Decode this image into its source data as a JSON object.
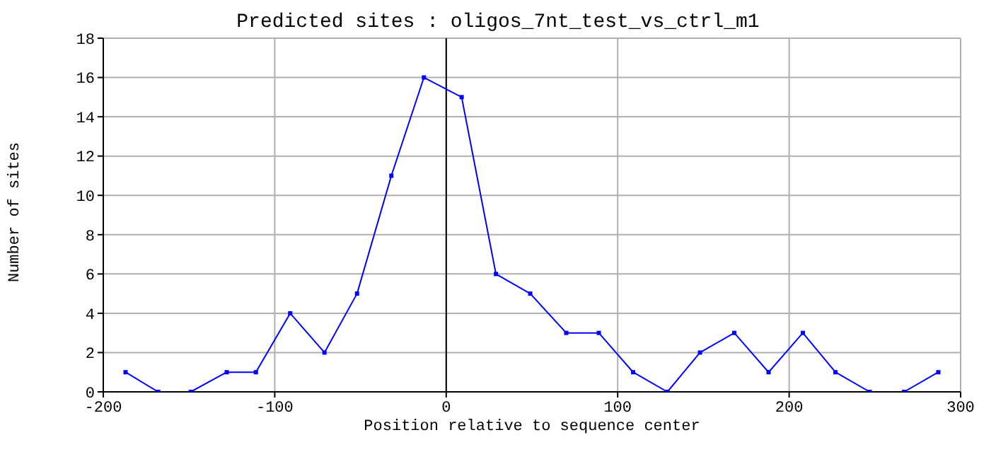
{
  "chart_data": {
    "type": "line",
    "title": "Predicted sites : oligos_7nt_test_vs_ctrl_m1",
    "xlabel": "Position relative to sequence center",
    "ylabel": "Number of sites",
    "x": [
      -187,
      -168,
      -149,
      -128,
      -111,
      -91,
      -71,
      -52,
      -32,
      -13,
      9,
      29,
      49,
      70,
      89,
      109,
      129,
      148,
      168,
      188,
      208,
      227,
      247,
      267,
      287
    ],
    "series": [
      {
        "color": "#0000ff",
        "values": [
          1,
          0,
          0,
          1,
          1,
          4,
          2,
          5,
          11,
          16,
          15,
          6,
          5,
          3,
          3,
          1,
          0,
          2,
          3,
          1,
          3,
          1,
          0,
          0,
          1
        ]
      }
    ],
    "xlim": [
      -200,
      300
    ],
    "xticks": [
      -200,
      -100,
      0,
      100,
      200,
      300
    ],
    "ylim": [
      0,
      18
    ],
    "yticks": [
      0,
      2,
      4,
      6,
      8,
      10,
      12,
      14,
      16,
      18
    ],
    "grid": true,
    "marker": "square",
    "ref_lines": [
      {
        "axis": "x",
        "value": 0,
        "color": "#000000"
      }
    ]
  }
}
